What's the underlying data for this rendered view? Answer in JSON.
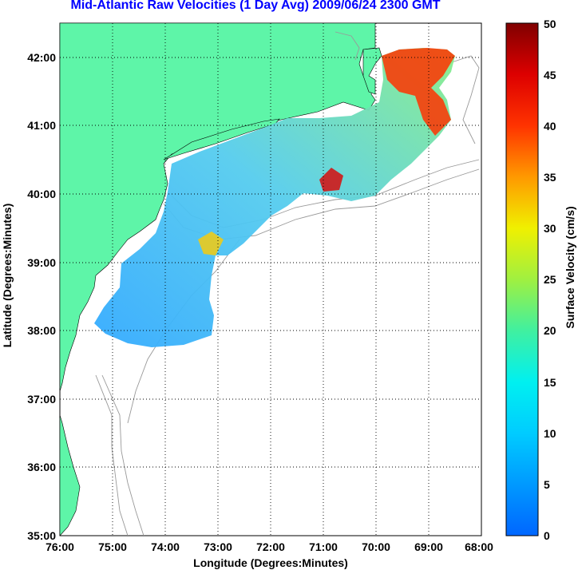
{
  "title": "Mid-Atlantic Raw Velocities (1 Day Avg) 2009/06/24 2300 GMT",
  "colors": {
    "land": "#5ef5a8",
    "grid": "#000000",
    "bathymetry": "#999999",
    "title": "#0000ff"
  },
  "chart_data": {
    "type": "heatmap",
    "xlabel": "Longitude (Degrees:Minutes)",
    "ylabel": "Latitude (Degrees:Minutes)",
    "x_ticks": [
      "76:00",
      "75:00",
      "74:00",
      "73:00",
      "72:00",
      "71:00",
      "70:00",
      "69:00",
      "68:00"
    ],
    "y_ticks": [
      "35:00",
      "36:00",
      "37:00",
      "38:00",
      "39:00",
      "40:00",
      "41:00",
      "42:00"
    ],
    "xlim": [
      -76,
      -68
    ],
    "ylim": [
      35,
      42.5
    ],
    "colorbar": {
      "label": "Surface Velocity (cm/s)",
      "range": [
        0,
        50
      ],
      "ticks": [
        "0",
        "5",
        "10",
        "15",
        "20",
        "25",
        "30",
        "35",
        "40",
        "45",
        "50"
      ]
    }
  }
}
